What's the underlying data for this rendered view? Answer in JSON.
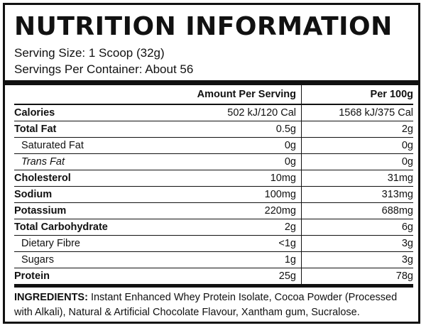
{
  "title": "NUTRITION INFORMATION",
  "serving_size": "Serving Size: 1 Scoop (32g)",
  "servings_per_container": "Servings Per Container: About 56",
  "table": {
    "headers": [
      "",
      "Amount Per Serving",
      "Per 100g"
    ],
    "rows": [
      {
        "name": "Calories",
        "per_serving": "502 kJ/120 Cal",
        "per_100g": "1568 kJ/375 Cal",
        "style": "bold"
      },
      {
        "name": "Total Fat",
        "per_serving": "0.5g",
        "per_100g": "2g",
        "style": "bold"
      },
      {
        "name": "Saturated Fat",
        "per_serving": "0g",
        "per_100g": "0g",
        "style": "sub"
      },
      {
        "name": "Trans Fat",
        "per_serving": "0g",
        "per_100g": "0g",
        "style": "sub-italic"
      },
      {
        "name": "Cholesterol",
        "per_serving": "10mg",
        "per_100g": "31mg",
        "style": "bold"
      },
      {
        "name": "Sodium",
        "per_serving": "100mg",
        "per_100g": "313mg",
        "style": "bold"
      },
      {
        "name": "Potassium",
        "per_serving": "220mg",
        "per_100g": "688mg",
        "style": "bold"
      },
      {
        "name": "Total Carbohydrate",
        "per_serving": "2g",
        "per_100g": "6g",
        "style": "bold"
      },
      {
        "name": "Dietary Fibre",
        "per_serving": "<1g",
        "per_100g": "3g",
        "style": "sub"
      },
      {
        "name": "Sugars",
        "per_serving": "1g",
        "per_100g": "3g",
        "style": "sub"
      },
      {
        "name": "Protein",
        "per_serving": "25g",
        "per_100g": "78g",
        "style": "bold"
      }
    ]
  },
  "ingredients": {
    "label": "INGREDIENTS:",
    "text": " Instant Enhanced Whey Protein Isolate, Cocoa Powder (Processed with Alkali), Natural & Artificial Chocolate Flavour, Xantham gum, Sucralose."
  },
  "colors": {
    "ink": "#111111",
    "background": "#ffffff"
  }
}
